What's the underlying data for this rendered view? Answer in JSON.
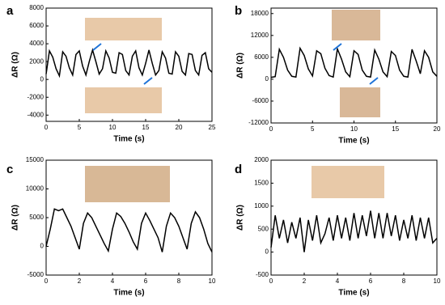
{
  "chart_data": [
    {
      "type": "line",
      "panel": "a",
      "x_label": "Time (s)",
      "y_label": "ΔR (Ω)",
      "color": "#000000",
      "xlim": [
        0,
        25
      ],
      "xticks": [
        0,
        5,
        10,
        15,
        20,
        25
      ],
      "ylim": [
        -4700,
        8000
      ],
      "yticks": [
        -4000,
        -2000,
        0,
        2000,
        4000,
        6000,
        8000
      ],
      "x": [
        0,
        0.5,
        1,
        1.5,
        2,
        2.5,
        3,
        3.5,
        4,
        4.5,
        5,
        5.5,
        6,
        6.5,
        7,
        7.5,
        8,
        8.5,
        9,
        9.5,
        10,
        10.5,
        11,
        11.5,
        12,
        12.5,
        13,
        13.5,
        14,
        14.5,
        15,
        15.5,
        16,
        16.5,
        17,
        17.5,
        18,
        18.5,
        19,
        19.5,
        20,
        20.5,
        21,
        21.5,
        22,
        22.5,
        23,
        23.5,
        24,
        24.5,
        25
      ],
      "values": [
        600,
        3200,
        2500,
        1200,
        400,
        3100,
        2600,
        1300,
        500,
        2800,
        3200,
        1500,
        500,
        2000,
        3300,
        2000,
        600,
        1200,
        3200,
        2400,
        800,
        700,
        3000,
        2800,
        1000,
        500,
        2600,
        3200,
        1300,
        500,
        1800,
        3300,
        1800,
        500,
        1000,
        3100,
        2400,
        700,
        600,
        3100,
        2600,
        900,
        500,
        2900,
        2800,
        1000,
        500,
        2700,
        3000,
        1200,
        800
      ]
    },
    {
      "type": "line",
      "panel": "b",
      "x_label": "Time (s)",
      "y_label": "ΔR (Ω)",
      "color": "#000000",
      "xlim": [
        0,
        20
      ],
      "xticks": [
        0,
        5,
        10,
        15,
        20
      ],
      "ylim": [
        -12000,
        19500
      ],
      "yticks": [
        -12000,
        -6000,
        0,
        6000,
        12000,
        18000
      ],
      "x": [
        0,
        0.5,
        1,
        1.5,
        2,
        2.5,
        3,
        3.5,
        4,
        4.5,
        5,
        5.5,
        6,
        6.5,
        7,
        7.5,
        8,
        8.5,
        9,
        9.5,
        10,
        10.5,
        11,
        11.5,
        12,
        12.5,
        13,
        13.5,
        14,
        14.5,
        15,
        15.5,
        16,
        16.5,
        17,
        17.5,
        18,
        18.5,
        19,
        19.5,
        20
      ],
      "values": [
        500,
        700,
        8200,
        6000,
        2500,
        800,
        600,
        8500,
        6500,
        2800,
        900,
        7800,
        7000,
        3000,
        1000,
        600,
        8300,
        5500,
        2000,
        700,
        7800,
        6800,
        2500,
        800,
        600,
        8000,
        5500,
        2000,
        700,
        7600,
        6500,
        2500,
        800,
        600,
        8200,
        5000,
        1500,
        7800,
        6000,
        2000,
        800
      ]
    },
    {
      "type": "line",
      "panel": "c",
      "x_label": "Time (s)",
      "y_label": "ΔR (Ω)",
      "color": "#000000",
      "xlim": [
        0,
        10
      ],
      "xticks": [
        0,
        2,
        4,
        6,
        8,
        10
      ],
      "ylim": [
        -5000,
        15000
      ],
      "yticks": [
        -5000,
        0,
        5000,
        10000,
        15000
      ],
      "x": [
        0,
        0.25,
        0.5,
        0.75,
        1,
        1.25,
        1.5,
        1.75,
        2,
        2.25,
        2.5,
        2.75,
        3,
        3.25,
        3.5,
        3.75,
        4,
        4.25,
        4.5,
        4.75,
        5,
        5.25,
        5.5,
        5.75,
        6,
        6.25,
        6.5,
        6.75,
        7,
        7.25,
        7.5,
        7.75,
        8,
        8.25,
        8.5,
        8.75,
        9,
        9.25,
        9.5,
        9.75,
        10
      ],
      "values": [
        0,
        3000,
        6500,
        6200,
        6500,
        5000,
        3500,
        1500,
        -500,
        4000,
        5800,
        5000,
        3500,
        2000,
        500,
        -800,
        3000,
        5800,
        5200,
        4000,
        2500,
        800,
        -500,
        4000,
        5800,
        4500,
        3000,
        1500,
        -1000,
        3500,
        5800,
        5000,
        3500,
        1500,
        -500,
        4000,
        6000,
        5000,
        3000,
        500,
        -1000
      ]
    },
    {
      "type": "line",
      "panel": "d",
      "x_label": "Time (s)",
      "y_label": "ΔR (Ω)",
      "color": "#000000",
      "xlim": [
        0,
        10
      ],
      "xticks": [
        0,
        2,
        4,
        6,
        8,
        10
      ],
      "ylim": [
        -500,
        2000
      ],
      "yticks": [
        -500,
        0,
        500,
        1000,
        1500,
        2000
      ],
      "x": [
        0,
        0.25,
        0.5,
        0.75,
        1,
        1.25,
        1.5,
        1.75,
        2,
        2.25,
        2.5,
        2.75,
        3,
        3.25,
        3.5,
        3.75,
        4,
        4.25,
        4.5,
        4.75,
        5,
        5.25,
        5.5,
        5.75,
        6,
        6.25,
        6.5,
        6.75,
        7,
        7.25,
        7.5,
        7.75,
        8,
        8.25,
        8.5,
        8.75,
        9,
        9.25,
        9.5,
        9.75,
        10
      ],
      "values": [
        100,
        800,
        300,
        700,
        200,
        650,
        300,
        750,
        0,
        700,
        250,
        800,
        200,
        400,
        750,
        250,
        800,
        300,
        750,
        250,
        850,
        300,
        800,
        350,
        900,
        300,
        850,
        300,
        850,
        350,
        800,
        250,
        700,
        300,
        800,
        250,
        750,
        300,
        750,
        200,
        300
      ]
    }
  ]
}
